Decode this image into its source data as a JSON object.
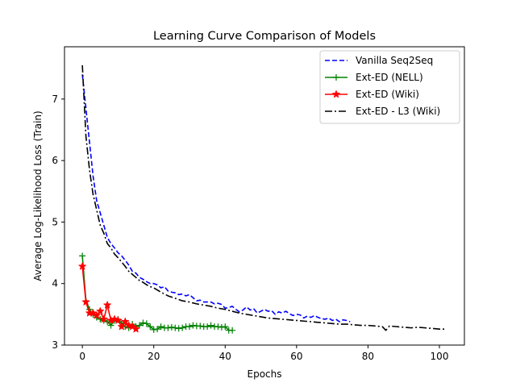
{
  "chart_data": {
    "type": "line",
    "title": "Learning Curve Comparison of Models",
    "xlabel": "Epochs",
    "ylabel": "Average Log-Likelihood Loss (Train)",
    "xlim": [
      -5,
      107
    ],
    "ylim": [
      3.0,
      7.85
    ],
    "xticks": [
      0,
      20,
      40,
      60,
      80,
      100
    ],
    "yticks": [
      3,
      4,
      5,
      6,
      7
    ],
    "grid": false,
    "legend_position": "top-right",
    "series": [
      {
        "name": "Vanilla Seq2Seq",
        "color": "#0000ff",
        "style": "dashed",
        "marker": "none",
        "x": [
          0,
          1,
          2,
          3,
          4,
          5,
          6,
          7,
          8,
          9,
          10,
          11,
          12,
          13,
          14,
          15,
          16,
          17,
          18,
          19,
          20,
          21,
          22,
          23,
          24,
          25,
          26,
          27,
          28,
          29,
          30,
          31,
          32,
          33,
          34,
          35,
          36,
          37,
          38,
          39,
          40,
          41,
          42,
          43,
          44,
          45,
          46,
          47,
          48,
          49,
          50,
          51,
          52,
          53,
          54,
          55,
          56,
          57,
          58,
          59,
          60,
          61,
          62,
          63,
          64,
          65,
          66,
          67,
          68,
          69,
          70,
          71,
          72,
          73,
          74,
          75
        ],
        "y": [
          7.4,
          6.85,
          6.3,
          5.75,
          5.35,
          5.15,
          4.95,
          4.75,
          4.65,
          4.58,
          4.5,
          4.45,
          4.38,
          4.3,
          4.2,
          4.17,
          4.1,
          4.07,
          4.03,
          4.0,
          4.0,
          3.98,
          3.93,
          3.95,
          3.88,
          3.86,
          3.85,
          3.82,
          3.83,
          3.8,
          3.82,
          3.77,
          3.72,
          3.73,
          3.7,
          3.7,
          3.7,
          3.67,
          3.68,
          3.66,
          3.6,
          3.61,
          3.63,
          3.58,
          3.54,
          3.57,
          3.62,
          3.57,
          3.59,
          3.52,
          3.55,
          3.58,
          3.55,
          3.56,
          3.5,
          3.54,
          3.52,
          3.55,
          3.51,
          3.48,
          3.5,
          3.49,
          3.44,
          3.47,
          3.45,
          3.48,
          3.45,
          3.43,
          3.42,
          3.44,
          3.4,
          3.42,
          3.38,
          3.41,
          3.4,
          3.38
        ]
      },
      {
        "name": "Ext-ED (NELL)",
        "color": "#008000",
        "style": "solid",
        "marker": "plus",
        "x": [
          0,
          1,
          2,
          3,
          4,
          5,
          6,
          7,
          8,
          9,
          10,
          11,
          12,
          13,
          14,
          15,
          16,
          17,
          18,
          19,
          20,
          21,
          22,
          23,
          24,
          25,
          26,
          27,
          28,
          29,
          30,
          31,
          32,
          33,
          34,
          35,
          36,
          37,
          38,
          39,
          40,
          41,
          42
        ],
        "y": [
          4.45,
          3.72,
          3.58,
          3.5,
          3.45,
          3.42,
          3.4,
          3.38,
          3.32,
          3.4,
          3.42,
          3.36,
          3.3,
          3.28,
          3.34,
          3.3,
          3.32,
          3.36,
          3.35,
          3.3,
          3.25,
          3.26,
          3.3,
          3.28,
          3.28,
          3.29,
          3.28,
          3.27,
          3.28,
          3.3,
          3.3,
          3.32,
          3.31,
          3.31,
          3.3,
          3.3,
          3.32,
          3.3,
          3.3,
          3.29,
          3.3,
          3.24,
          3.24
        ]
      },
      {
        "name": "Ext-ED (Wiki)",
        "color": "#ff0000",
        "style": "solid",
        "marker": "star",
        "x": [
          0,
          1,
          2,
          3,
          4,
          5,
          6,
          7,
          8,
          9,
          10,
          11,
          12,
          13,
          14,
          15
        ],
        "y": [
          4.28,
          3.7,
          3.52,
          3.52,
          3.48,
          3.55,
          3.42,
          3.65,
          3.4,
          3.42,
          3.4,
          3.3,
          3.38,
          3.32,
          3.3,
          3.26
        ]
      },
      {
        "name": "Ext-ED - L3 (Wiki)",
        "color": "#000000",
        "style": "dashdot",
        "marker": "none",
        "x": [
          0,
          1,
          2,
          3,
          4,
          5,
          6,
          7,
          8,
          9,
          10,
          11,
          12,
          13,
          14,
          15,
          16,
          17,
          18,
          19,
          20,
          22,
          24,
          26,
          28,
          30,
          32,
          34,
          36,
          38,
          40,
          42,
          44,
          46,
          48,
          50,
          52,
          54,
          56,
          58,
          60,
          62,
          64,
          66,
          68,
          70,
          72,
          74,
          76,
          78,
          80,
          82,
          84,
          85,
          86,
          88,
          90,
          92,
          94,
          96,
          98,
          100,
          102
        ],
        "y": [
          7.55,
          6.4,
          5.85,
          5.45,
          5.2,
          4.95,
          4.82,
          4.65,
          4.58,
          4.48,
          4.42,
          4.35,
          4.28,
          4.2,
          4.15,
          4.1,
          4.05,
          4.02,
          3.98,
          3.95,
          3.93,
          3.86,
          3.8,
          3.76,
          3.72,
          3.7,
          3.67,
          3.65,
          3.63,
          3.6,
          3.58,
          3.55,
          3.52,
          3.5,
          3.48,
          3.46,
          3.44,
          3.43,
          3.42,
          3.41,
          3.4,
          3.39,
          3.38,
          3.37,
          3.36,
          3.35,
          3.34,
          3.34,
          3.33,
          3.32,
          3.32,
          3.31,
          3.3,
          3.24,
          3.31,
          3.3,
          3.29,
          3.28,
          3.29,
          3.28,
          3.27,
          3.26,
          3.26
        ]
      }
    ]
  }
}
